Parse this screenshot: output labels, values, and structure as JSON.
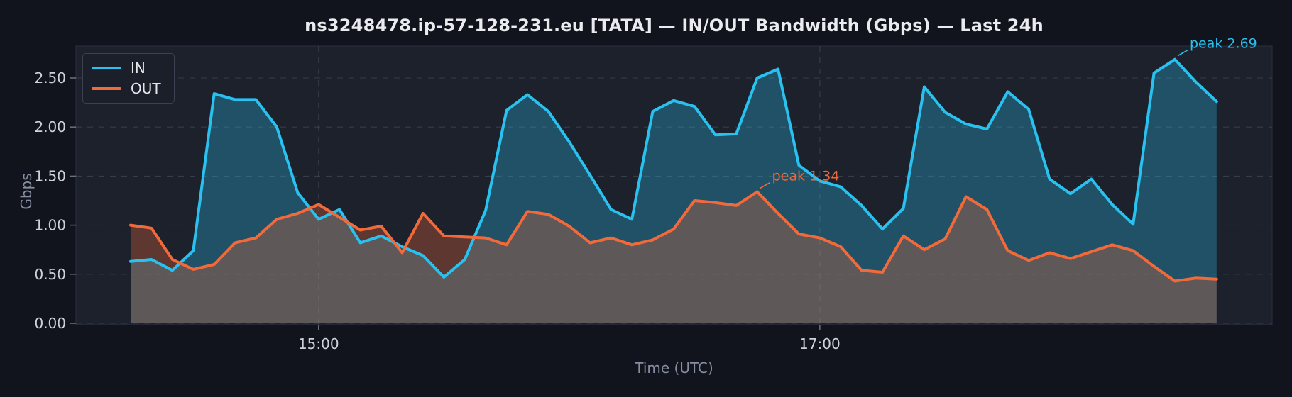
{
  "title": "ns3248478.ip-57-128-231.eu [TATA] — IN/OUT Bandwidth (Gbps) — Last 24h",
  "chart_data": {
    "type": "line",
    "title": "ns3248478.ip-57-128-231.eu [TATA] — IN/OUT Bandwidth (Gbps) — Last 24h",
    "xlabel": "Time (UTC)",
    "ylabel": "Gbps",
    "x_ticks": [
      "15:00",
      "17:00"
    ],
    "y_ticks": [
      "0.00",
      "0.50",
      "1.00",
      "1.50",
      "2.00",
      "2.50"
    ],
    "ylim": [
      0,
      2.82
    ],
    "grid": true,
    "legend_position": "upper-left",
    "x": [
      "14:15",
      "14:20",
      "14:25",
      "14:30",
      "14:35",
      "14:40",
      "14:45",
      "14:50",
      "14:55",
      "15:00",
      "15:05",
      "15:10",
      "15:15",
      "15:20",
      "15:25",
      "15:30",
      "15:35",
      "15:40",
      "15:45",
      "15:50",
      "15:55",
      "16:00",
      "16:05",
      "16:10",
      "16:15",
      "16:20",
      "16:25",
      "16:30",
      "16:35",
      "16:40",
      "16:45",
      "16:50",
      "16:55",
      "17:00",
      "17:05",
      "17:10",
      "17:15",
      "17:20",
      "17:25",
      "17:30",
      "17:35",
      "17:40",
      "17:45",
      "17:50",
      "17:55",
      "18:00",
      "18:05",
      "18:10",
      "18:15",
      "18:20",
      "18:25",
      "18:30",
      "18:35"
    ],
    "series": [
      {
        "name": "IN",
        "color": "#29c1ef",
        "fill_opacity": 0.3,
        "values": [
          0.63,
          0.65,
          0.54,
          0.74,
          2.34,
          2.28,
          2.28,
          2.0,
          1.33,
          1.06,
          1.16,
          0.82,
          0.89,
          0.78,
          0.69,
          0.47,
          0.65,
          1.15,
          2.17,
          2.33,
          2.16,
          1.85,
          1.51,
          1.16,
          1.06,
          2.16,
          2.27,
          2.21,
          1.92,
          1.93,
          2.5,
          2.59,
          1.61,
          1.45,
          1.39,
          1.2,
          0.96,
          1.17,
          2.41,
          2.15,
          2.03,
          1.98,
          2.36,
          2.18,
          1.47,
          1.32,
          1.47,
          1.21,
          1.01,
          2.55,
          2.69,
          2.46,
          2.26
        ]
      },
      {
        "name": "OUT",
        "color": "#f26a3a",
        "fill_opacity": 0.3,
        "values": [
          1.0,
          0.97,
          0.65,
          0.55,
          0.6,
          0.82,
          0.87,
          1.06,
          1.12,
          1.21,
          1.08,
          0.95,
          0.99,
          0.72,
          1.12,
          0.89,
          0.88,
          0.87,
          0.8,
          1.14,
          1.11,
          0.99,
          0.82,
          0.87,
          0.8,
          0.85,
          0.96,
          1.25,
          1.23,
          1.2,
          1.34,
          1.12,
          0.91,
          0.87,
          0.78,
          0.54,
          0.52,
          0.89,
          0.75,
          0.86,
          1.29,
          1.16,
          0.74,
          0.64,
          0.72,
          0.66,
          0.73,
          0.8,
          0.74,
          0.58,
          0.43,
          0.46,
          0.45
        ]
      }
    ],
    "annotations": [
      {
        "label": "peak 2.69",
        "series": "IN",
        "time": "18:25",
        "value": 2.69
      },
      {
        "label": "peak 1.34",
        "series": "OUT",
        "time": "16:45",
        "value": 1.34
      }
    ]
  },
  "colors": {
    "figure_bg": "#11141c",
    "plot_bg": "#1d212c",
    "grid": "#3f4654",
    "tick_text": "#ced1d9",
    "muted_text": "#878da1",
    "title_text": "#eaebef",
    "in_line": "#29c1ef",
    "out_line": "#f26a3a"
  }
}
